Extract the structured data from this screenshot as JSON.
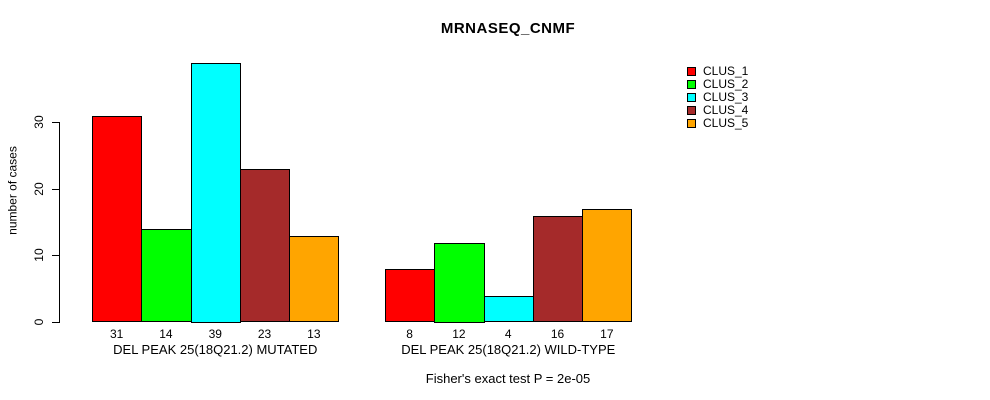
{
  "title": "MRNASEQ_CNMF",
  "footer": "Fisher's exact test P = 2e-05",
  "y_axis": {
    "label": "number of cases",
    "ticks": [
      0,
      10,
      20,
      30
    ]
  },
  "legend": {
    "position": "top-right",
    "items": [
      {
        "label": "CLUS_1",
        "color": "#ff0000"
      },
      {
        "label": "CLUS_2",
        "color": "#00ff00"
      },
      {
        "label": "CLUS_3",
        "color": "#00ffff"
      },
      {
        "label": "CLUS_4",
        "color": "#a52a2a"
      },
      {
        "label": "CLUS_5",
        "color": "#ffa500"
      }
    ]
  },
  "chart_data": {
    "type": "bar",
    "title": "MRNASEQ_CNMF",
    "ylabel": "number of cases",
    "xlabel": "",
    "ylim": [
      0,
      39
    ],
    "yticks": [
      0,
      10,
      20,
      30
    ],
    "grid": false,
    "legend_position": "top-right",
    "annotation": "Fisher's exact test P = 2e-05",
    "categories": [
      "DEL PEAK 25(18Q21.2) MUTATED",
      "DEL PEAK 25(18Q21.2) WILD-TYPE"
    ],
    "series": [
      {
        "name": "CLUS_1",
        "color": "#ff0000",
        "values": [
          31,
          8
        ]
      },
      {
        "name": "CLUS_2",
        "color": "#00ff00",
        "values": [
          14,
          12
        ]
      },
      {
        "name": "CLUS_3",
        "color": "#00ffff",
        "values": [
          39,
          4
        ]
      },
      {
        "name": "CLUS_4",
        "color": "#a52a2a",
        "values": [
          23,
          16
        ]
      },
      {
        "name": "CLUS_5",
        "color": "#ffa500",
        "values": [
          13,
          17
        ]
      }
    ]
  }
}
